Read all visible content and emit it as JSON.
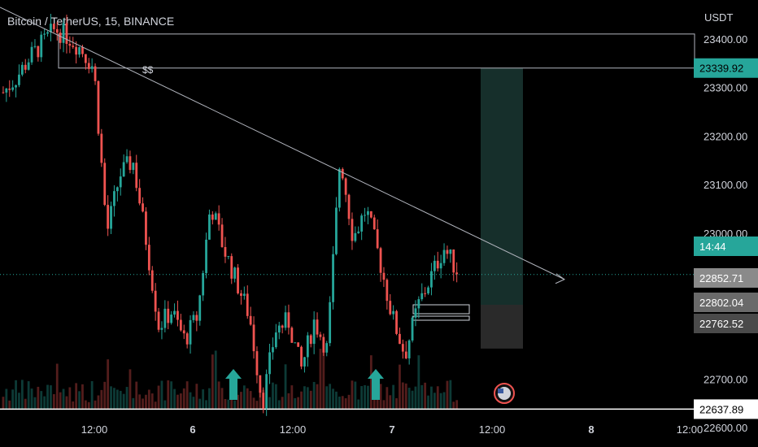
{
  "header": {
    "symbol": "Bitcoin / TetherUS",
    "interval": "15",
    "exchange": "BINANCE",
    "separator": ", "
  },
  "annotations": {
    "dollar_label": "$$"
  },
  "chart_data": {
    "type": "candlestick",
    "price_unit": "USDT",
    "ylim": [
      22560,
      23480
    ],
    "y_ticks": [
      "23400.00",
      "23300.00",
      "23200.00",
      "23100.00",
      "23000.00",
      "22700.00",
      "22600.00"
    ],
    "y_tick_values": [
      23400,
      23300,
      23200,
      23100,
      23000,
      22700,
      22600
    ],
    "x_ticks": [
      "12:00",
      "6",
      "12:00",
      "7",
      "12:00",
      "8",
      "12:00"
    ],
    "x_ticks_bold": [
      false,
      true,
      false,
      true,
      false,
      true,
      false
    ],
    "price_labels": [
      {
        "text": "23339.92",
        "value": 23339.92,
        "kind": "level-green"
      },
      {
        "text": "14:44",
        "value": 22915,
        "kind": "countdown"
      },
      {
        "text": "22852.71",
        "value": 22852.71,
        "kind": "gray"
      },
      {
        "text": "22802.04",
        "value": 22802.04,
        "kind": "darkgray"
      },
      {
        "text": "22762.52",
        "value": 22762.52,
        "kind": "darkergray"
      },
      {
        "text": "22637.89",
        "value": 22637.89,
        "kind": "level-white"
      }
    ],
    "horizontal_levels": [
      23410,
      23339.92,
      22637.89
    ],
    "current_price": 22915,
    "trendline": {
      "from": [
        0,
        23465
      ],
      "to": [
        700,
        22905
      ]
    },
    "close_path": [
      23290,
      23320,
      23360,
      23390,
      23420,
      23405,
      23380,
      23340,
      23000,
      23120,
      23150,
      22990,
      22810,
      22840,
      22780,
      22830,
      23060,
      22970,
      22900,
      22830,
      22650,
      22800,
      22820,
      22720,
      22820,
      22760,
      23160,
      22990,
      23050,
      22950,
      22830,
      22750,
      22850,
      22910,
      22970,
      22925
    ],
    "colors": {
      "up": "#26a69a",
      "down": "#ef5350",
      "background": "#000000",
      "target_zone": "#1e3f3a",
      "stop_zone": "#2a2a2a",
      "level_green": "#26a69a"
    }
  }
}
